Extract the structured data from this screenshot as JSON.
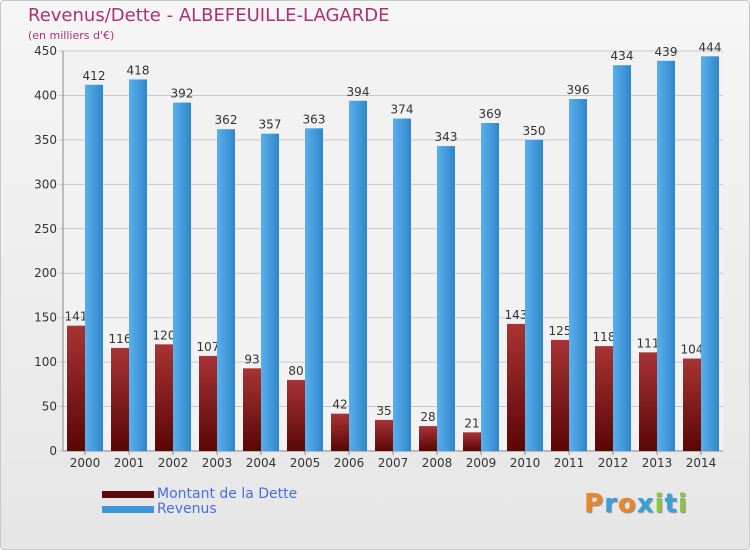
{
  "chart_data": {
    "type": "bar",
    "title": "Revenus/Dette - ALBEFEUILLE-LAGARDE",
    "subtitle": "(en milliers d'€)",
    "categories": [
      "2000",
      "2001",
      "2002",
      "2003",
      "2004",
      "2005",
      "2006",
      "2007",
      "2008",
      "2009",
      "2010",
      "2011",
      "2012",
      "2013",
      "2014"
    ],
    "series": [
      {
        "name": "Montant de la Dette",
        "color": "#8b1a1a",
        "values": [
          141,
          116,
          120,
          107,
          93,
          80,
          42,
          35,
          28,
          21,
          143,
          125,
          118,
          111,
          104
        ]
      },
      {
        "name": "Revenus",
        "color": "#3c96dc",
        "values": [
          412,
          418,
          392,
          362,
          357,
          363,
          394,
          374,
          343,
          369,
          350,
          396,
          434,
          439,
          444
        ]
      }
    ],
    "ylim": [
      0,
      450
    ],
    "yticks": [
      0,
      50,
      100,
      150,
      200,
      250,
      300,
      350,
      400,
      450
    ],
    "grid": true,
    "legend": "bottom-left"
  },
  "brand": {
    "letters": [
      {
        "char": "P",
        "color": "#e8862a"
      },
      {
        "char": "r",
        "color": "#3aa0d8"
      },
      {
        "char": "o",
        "color": "#e8862a"
      },
      {
        "char": "x",
        "color": "#3aa0d8"
      },
      {
        "char": "i",
        "color": "#8cc63f"
      },
      {
        "char": "t",
        "color": "#3aa0d8"
      },
      {
        "char": "i",
        "color": "#8cc63f"
      }
    ]
  }
}
